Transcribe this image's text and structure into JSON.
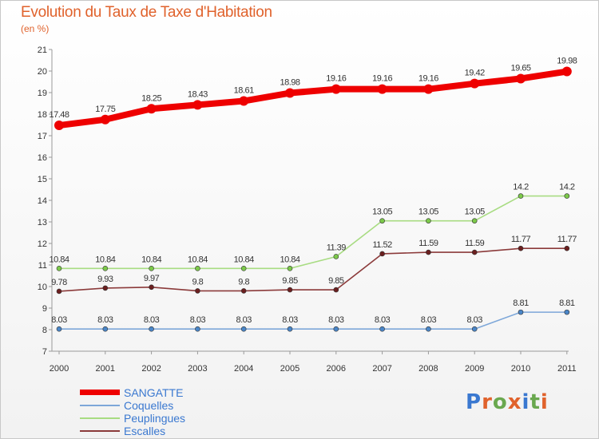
{
  "header": {
    "title": "Evolution du Taux de Taxe d'Habitation",
    "subtitle": "(en %)"
  },
  "logo": {
    "text": "Proxiti",
    "letter_colors": [
      "#3a78d0",
      "#e0622c",
      "#6aa84f",
      "#e0622c",
      "#3a78d0",
      "#6aa84f",
      "#e0622c"
    ]
  },
  "chart_data": {
    "type": "line",
    "title": "Evolution du Taux de Taxe d'Habitation",
    "ylabel": "(en %)",
    "xlabel": "",
    "x": [
      "2000",
      "2001",
      "2002",
      "2003",
      "2004",
      "2005",
      "2006",
      "2007",
      "2008",
      "2009",
      "2010",
      "2011"
    ],
    "ylim": [
      7,
      21
    ],
    "yticks": [
      7,
      8,
      9,
      10,
      11,
      12,
      13,
      14,
      15,
      16,
      17,
      18,
      19,
      20,
      21
    ],
    "grid": false,
    "legend": "bottom-left",
    "series": [
      {
        "name": "SANGATTE",
        "color": "#ee0000",
        "marker": "#ee0000",
        "values": [
          17.48,
          17.75,
          18.25,
          18.43,
          18.61,
          18.98,
          19.16,
          19.16,
          19.16,
          19.42,
          19.65,
          19.98
        ],
        "labels": [
          "17.48",
          "17.75",
          "18.25",
          "18.43",
          "18.61",
          "18.98",
          "19.16",
          "19.16",
          "19.16",
          "19.42",
          "19.65",
          "19.98"
        ]
      },
      {
        "name": "Coquelles",
        "color": "#7da7d9",
        "marker": "#4a86c8",
        "values": [
          8.03,
          8.03,
          8.03,
          8.03,
          8.03,
          8.03,
          8.03,
          8.03,
          8.03,
          8.03,
          8.81,
          8.81
        ],
        "labels": [
          "8.03",
          "8.03",
          "8.03",
          "8.03",
          "8.03",
          "8.03",
          "8.03",
          "8.03",
          "8.03",
          "8.03",
          "8.81",
          "8.81"
        ]
      },
      {
        "name": "Peuplingues",
        "color": "#a8dc82",
        "marker": "#7cc94a",
        "values": [
          10.84,
          10.84,
          10.84,
          10.84,
          10.84,
          10.84,
          11.39,
          13.05,
          13.05,
          13.05,
          14.2,
          14.2
        ],
        "labels": [
          "10.84",
          "10.84",
          "10.84",
          "10.84",
          "10.84",
          "10.84",
          "11.39",
          "13.05",
          "13.05",
          "13.05",
          "14.2",
          "14.2"
        ]
      },
      {
        "name": "Escalles",
        "color": "#8b3a3a",
        "marker": "#6b1f1f",
        "values": [
          9.78,
          9.93,
          9.97,
          9.8,
          9.8,
          9.85,
          9.85,
          11.52,
          11.59,
          11.59,
          11.77,
          11.77
        ],
        "labels": [
          "9.78",
          "9.93",
          "9.97",
          "9.8",
          "9.8",
          "9.85",
          "9.85",
          "11.52",
          "11.59",
          "11.59",
          "11.77",
          "11.77"
        ]
      }
    ]
  }
}
